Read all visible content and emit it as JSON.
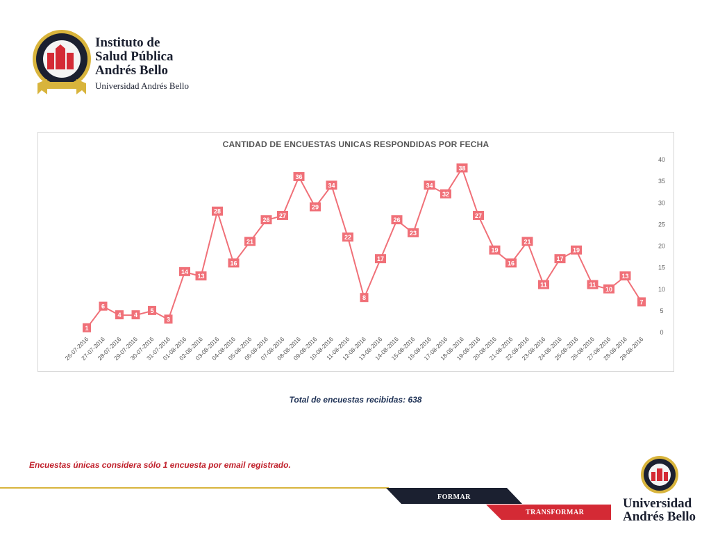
{
  "header": {
    "institute_line1": "Instituto de",
    "institute_line2": "Salud Pública",
    "institute_line3": "Andrés Bello",
    "university": "Universidad Andrés Bello"
  },
  "chart_data": {
    "type": "line",
    "title": "CANTIDAD DE ENCUESTAS UNICAS RESPONDIDAS POR FECHA",
    "xlabel": "",
    "ylabel": "",
    "ylim": [
      0,
      40
    ],
    "y_ticks": [
      0,
      5,
      10,
      15,
      20,
      25,
      30,
      35,
      40
    ],
    "y_axis_side": "right",
    "grid": false,
    "legend": "none",
    "color": "#f07078",
    "categories": [
      "26-07-2016",
      "27-07-2016",
      "28-07-2016",
      "29-07-2016",
      "30-07-2016",
      "31-07-2016",
      "01-08-2016",
      "02-08-2016",
      "03-08-2016",
      "04-08-2016",
      "05-08-2016",
      "06-08-2016",
      "07-08-2016",
      "08-08-2016",
      "09-08-2016",
      "10-08-2016",
      "11-08-2016",
      "12-08-2016",
      "13-08-2016",
      "14-08-2016",
      "15-08-2016",
      "16-08-2016",
      "17-08-2016",
      "18-08-2016",
      "19-08-2016",
      "20-08-2016",
      "21-08-2016",
      "22-08-2016",
      "23-08-2016",
      "24-08-2016",
      "25-08-2016",
      "26-08-2016",
      "27-08-2016",
      "28-08-2016",
      "29-08-2016"
    ],
    "values": [
      1,
      6,
      4,
      4,
      5,
      3,
      14,
      13,
      28,
      16,
      21,
      26,
      27,
      36,
      29,
      34,
      22,
      8,
      17,
      26,
      23,
      34,
      32,
      38,
      27,
      19,
      16,
      21,
      11,
      17,
      19,
      11,
      10,
      13,
      7
    ]
  },
  "summary": {
    "total_text": "Total de encuestas recibidas: 638"
  },
  "note": "Encuestas únicas considera sólo 1 encuesta por email registrado.",
  "footer": {
    "formar": "FORMAR",
    "transformar": "TRANSFORMAR",
    "unab_line1": "Universidad",
    "unab_line2": "Andrés Bello",
    "colors": {
      "navy": "#1b2030",
      "red": "#d42a35",
      "gold": "#d8b43c"
    }
  }
}
